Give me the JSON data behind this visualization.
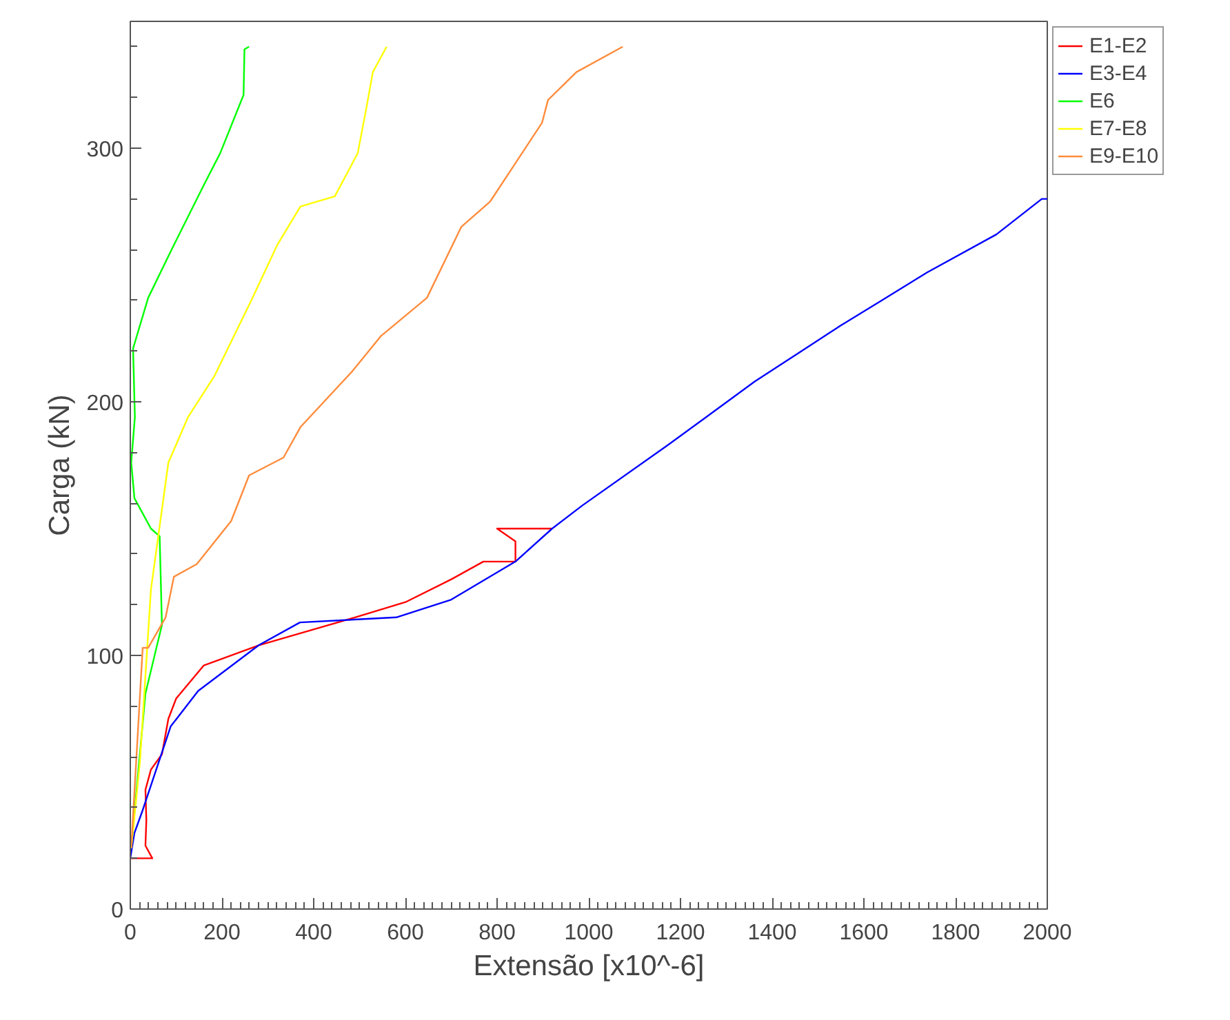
{
  "chart_data": {
    "type": "line",
    "xlabel": "Extensão [x10^-6]",
    "ylabel": "Carga (kN)",
    "xlim": [
      0,
      2000
    ],
    "ylim": [
      0,
      350
    ],
    "xticks": [
      0,
      200,
      400,
      600,
      800,
      1000,
      1200,
      1400,
      1600,
      1800,
      2000,
      {
        "value": 20,
        "label": null
      },
      {
        "value": 40,
        "label": null
      },
      {
        "value": 60,
        "label": null
      },
      {
        "value": 80,
        "label": null
      },
      {
        "value": 100,
        "label": null
      },
      {
        "value": 120,
        "label": null
      },
      {
        "value": 140,
        "label": null
      },
      {
        "value": 160,
        "label": null
      },
      {
        "value": 180,
        "label": null
      },
      {
        "value": 220,
        "label": null
      },
      {
        "value": 240,
        "label": null
      },
      {
        "value": 260,
        "label": null
      },
      {
        "value": 280,
        "label": null
      },
      {
        "value": 300,
        "label": null
      },
      {
        "value": 320,
        "label": null
      },
      {
        "value": 340,
        "label": null
      },
      {
        "value": 360,
        "label": null
      },
      {
        "value": 380,
        "label": null
      },
      {
        "value": 420,
        "label": null
      },
      {
        "value": 440,
        "label": null
      },
      {
        "value": 460,
        "label": null
      },
      {
        "value": 480,
        "label": null
      },
      {
        "value": 500,
        "label": null
      },
      {
        "value": 520,
        "label": null
      },
      {
        "value": 540,
        "label": null
      },
      {
        "value": 560,
        "label": null
      },
      {
        "value": 580,
        "label": null
      },
      {
        "value": 620,
        "label": null
      },
      {
        "value": 640,
        "label": null
      },
      {
        "value": 660,
        "label": null
      },
      {
        "value": 680,
        "label": null
      },
      {
        "value": 700,
        "label": null
      },
      {
        "value": 720,
        "label": null
      },
      {
        "value": 740,
        "label": null
      },
      {
        "value": 760,
        "label": null
      },
      {
        "value": 780,
        "label": null
      },
      {
        "value": 820,
        "label": null
      },
      {
        "value": 840,
        "label": null
      },
      {
        "value": 860,
        "label": null
      },
      {
        "value": 880,
        "label": null
      },
      {
        "value": 900,
        "label": null
      },
      {
        "value": 920,
        "label": null
      },
      {
        "value": 940,
        "label": null
      },
      {
        "value": 960,
        "label": null
      },
      {
        "value": 980,
        "label": null
      },
      {
        "value": 1020,
        "label": null
      },
      {
        "value": 1040,
        "label": null
      },
      {
        "value": 1060,
        "label": null
      },
      {
        "value": 1080,
        "label": null
      },
      {
        "value": 1100,
        "label": null
      },
      {
        "value": 1120,
        "label": null
      },
      {
        "value": 1140,
        "label": null
      },
      {
        "value": 1160,
        "label": null
      },
      {
        "value": 1180,
        "label": null
      },
      {
        "value": 1220,
        "label": null
      },
      {
        "value": 1240,
        "label": null
      },
      {
        "value": 1260,
        "label": null
      },
      {
        "value": 1280,
        "label": null
      },
      {
        "value": 1300,
        "label": null
      },
      {
        "value": 1320,
        "label": null
      },
      {
        "value": 1340,
        "label": null
      },
      {
        "value": 1360,
        "label": null
      },
      {
        "value": 1380,
        "label": null
      },
      {
        "value": 1420,
        "label": null
      },
      {
        "value": 1440,
        "label": null
      },
      {
        "value": 1460,
        "label": null
      },
      {
        "value": 1480,
        "label": null
      },
      {
        "value": 1500,
        "label": null
      },
      {
        "value": 1520,
        "label": null
      },
      {
        "value": 1540,
        "label": null
      },
      {
        "value": 1560,
        "label": null
      },
      {
        "value": 1580,
        "label": null
      },
      {
        "value": 1620,
        "label": null
      },
      {
        "value": 1640,
        "label": null
      },
      {
        "value": 1660,
        "label": null
      },
      {
        "value": 1680,
        "label": null
      },
      {
        "value": 1700,
        "label": null
      },
      {
        "value": 1720,
        "label": null
      },
      {
        "value": 1740,
        "label": null
      },
      {
        "value": 1760,
        "label": null
      },
      {
        "value": 1780,
        "label": null
      },
      {
        "value": 1820,
        "label": null
      },
      {
        "value": 1840,
        "label": null
      },
      {
        "value": 1860,
        "label": null
      },
      {
        "value": 1880,
        "label": null
      },
      {
        "value": 1900,
        "label": null
      },
      {
        "value": 1920,
        "label": null
      },
      {
        "value": 1940,
        "label": null
      },
      {
        "value": 1960,
        "label": null
      },
      {
        "value": 1980,
        "label": null
      }
    ],
    "yticks": [
      0,
      100,
      200,
      300,
      {
        "value": 20,
        "label": null
      },
      {
        "value": 40,
        "label": null
      },
      {
        "value": 60,
        "label": null
      },
      {
        "value": 80,
        "label": null
      },
      {
        "value": 120,
        "label": null
      },
      {
        "value": 140,
        "label": null
      },
      {
        "value": 160,
        "label": null
      },
      {
        "value": 180,
        "label": null
      },
      {
        "value": 220,
        "label": null
      },
      {
        "value": 240,
        "label": null
      },
      {
        "value": 260,
        "label": null
      },
      {
        "value": 280,
        "label": null
      },
      {
        "value": 320,
        "label": null
      },
      {
        "value": 340,
        "label": null
      }
    ],
    "grid": false,
    "legend": "right",
    "line_style": "solid",
    "series": [
      {
        "name": "E1-E2",
        "color": "#ff0000",
        "x": [
          0,
          48,
          33,
          35,
          33,
          45,
          69,
          83,
          100,
          160,
          280,
          490,
          600,
          700,
          770,
          840,
          840,
          800,
          920
        ],
        "values": [
          20,
          20,
          25,
          35,
          47,
          55,
          61,
          75,
          83,
          96,
          104,
          115,
          121,
          130,
          137,
          137,
          145,
          150,
          150
        ]
      },
      {
        "name": "E3-E4",
        "color": "#0000ff",
        "x": [
          0,
          9,
          27,
          88,
          148,
          280,
          370,
          580,
          700,
          840,
          920,
          985,
          1173,
          1362,
          1549,
          1738,
          1889,
          1988,
          2000
        ],
        "values": [
          20,
          30,
          39,
          72,
          86,
          104,
          113,
          115,
          122,
          137,
          150,
          159,
          183,
          208,
          230,
          251,
          266,
          280,
          280
        ]
      },
      {
        "name": "E6",
        "color": "#00ff00",
        "x": [
          2,
          33,
          69,
          64,
          45,
          9,
          2,
          10,
          6,
          39,
          90,
          159,
          196,
          247,
          249,
          259
        ],
        "values": [
          24,
          85,
          112,
          147,
          150,
          162,
          176,
          194,
          221,
          241,
          260,
          285,
          298,
          321,
          339,
          340
        ]
      },
      {
        "name": "E7-E8",
        "color": "#ffff00",
        "x": [
          2,
          21,
          45,
          83,
          126,
          183,
          264,
          321,
          371,
          446,
          496,
          515,
          529,
          559
        ],
        "values": [
          24,
          58,
          126,
          176,
          194,
          210,
          240,
          262,
          277,
          281,
          298,
          316,
          330,
          340
        ]
      },
      {
        "name": "E9-E10",
        "color": "#ff8c3c",
        "x": [
          2,
          27,
          39,
          77,
          95,
          145,
          220,
          259,
          334,
          371,
          484,
          547,
          647,
          722,
          785,
          898,
          911,
          973,
          1074
        ],
        "values": [
          24,
          103,
          103,
          115,
          131,
          136,
          153,
          171,
          178,
          190,
          212,
          226,
          241,
          269,
          279,
          310,
          319,
          330,
          340
        ]
      }
    ]
  }
}
